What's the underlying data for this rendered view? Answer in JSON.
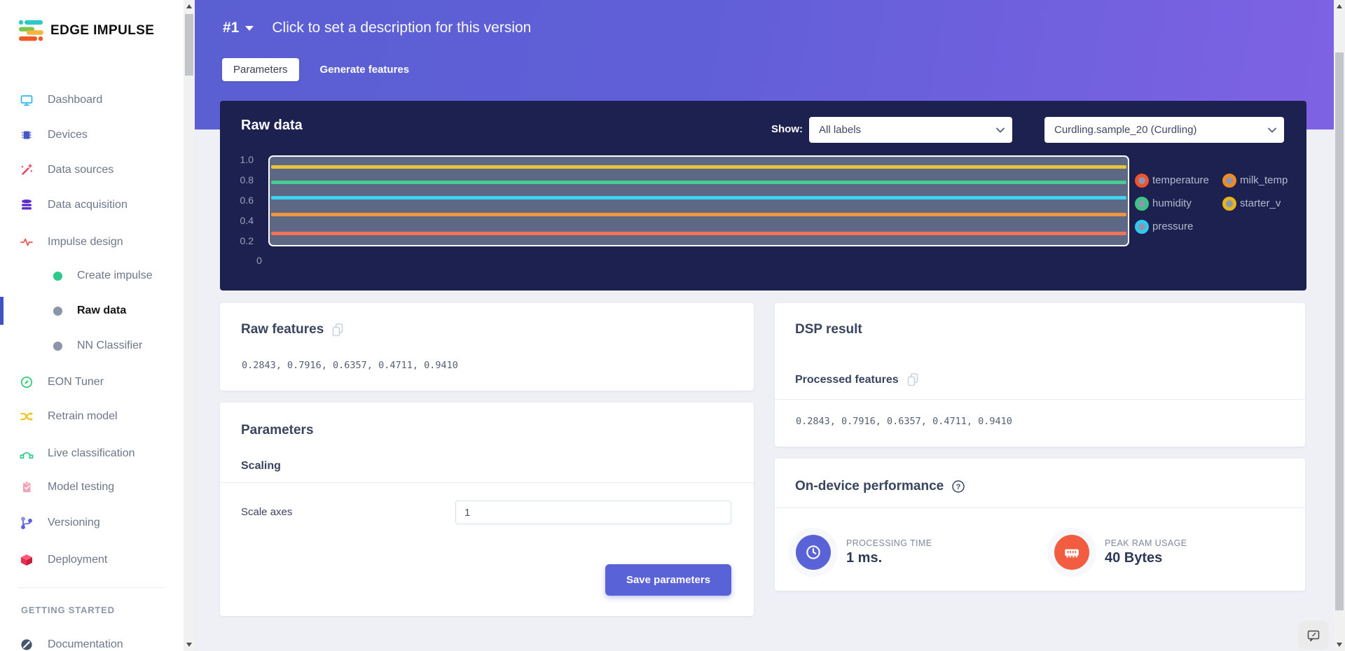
{
  "brand": {
    "name": "EDGE IMPULSE"
  },
  "sidebar": {
    "items": [
      {
        "label": "Dashboard",
        "icon": "monitor-icon"
      },
      {
        "label": "Devices",
        "icon": "chip-icon"
      },
      {
        "label": "Data sources",
        "icon": "wand-icon"
      },
      {
        "label": "Data acquisition",
        "icon": "database-icon"
      },
      {
        "label": "Impulse design",
        "icon": "waveform-icon"
      },
      {
        "label": "Create impulse",
        "icon": "dot-icon",
        "sub": true,
        "dot_color": "#2bc98a",
        "active": false
      },
      {
        "label": "Raw data",
        "icon": "dot-icon",
        "sub": true,
        "dot_color": "#8a95a9",
        "active": true
      },
      {
        "label": "NN Classifier",
        "icon": "dot-icon",
        "sub": true,
        "dot_color": "#8a95a9",
        "active": false
      },
      {
        "label": "EON Tuner",
        "icon": "compass-icon"
      },
      {
        "label": "Retrain model",
        "icon": "shuffle-icon"
      },
      {
        "label": "Live classification",
        "icon": "bezier-icon"
      },
      {
        "label": "Model testing",
        "icon": "clipboard-icon"
      },
      {
        "label": "Versioning",
        "icon": "git-branch-icon"
      },
      {
        "label": "Deployment",
        "icon": "package-icon"
      },
      {
        "label": "Documentation",
        "icon": "rocket-icon"
      }
    ],
    "section_header": "GETTING STARTED"
  },
  "header": {
    "version": "#1",
    "description": "Click to set a description for this version",
    "tabs": [
      {
        "label": "Parameters",
        "active": true
      },
      {
        "label": "Generate features",
        "active": false
      }
    ]
  },
  "raw_data_panel": {
    "title": "Raw data",
    "show_label": "Show:",
    "label_filter_value": "All labels",
    "sample_value": "Curdling.sample_20 (Curdling)"
  },
  "chart_data": {
    "type": "line",
    "title": "Raw data",
    "ylim": [
      0,
      1.05
    ],
    "yticks": [
      "1.0",
      "0.8",
      "0.6",
      "0.4",
      "0.2"
    ],
    "xticks": [
      "0"
    ],
    "grid": false,
    "legend_position": "right",
    "plot_bg": "#5d6884",
    "series": [
      {
        "name": "temperature",
        "value": 0.2843,
        "color": "#f4735a",
        "legend_ring": "#f4512e"
      },
      {
        "name": "humidity",
        "value": 0.7916,
        "color": "#47cd92",
        "legend_ring": "#3cc487"
      },
      {
        "name": "pressure",
        "value": 0.6357,
        "color": "#41d3f2",
        "legend_ring": "#2fc9f2"
      },
      {
        "name": "milk_temp",
        "value": 0.4711,
        "color": "#f0963e",
        "legend_ring": "#ee8b23"
      },
      {
        "name": "starter_v",
        "value": 0.941,
        "color": "#e9c53f",
        "legend_ring": "#e7b41c"
      }
    ],
    "note": "each series is a constant horizontal line across the visible window"
  },
  "raw_features": {
    "title": "Raw features",
    "values": "0.2843, 0.7916, 0.6357, 0.4711, 0.9410"
  },
  "parameters_card": {
    "title": "Parameters",
    "section_title": "Scaling",
    "scale_axes_label": "Scale axes",
    "scale_axes_value": "1",
    "save_button": "Save parameters"
  },
  "dsp_result": {
    "title": "DSP result",
    "processed_label": "Processed features",
    "values": "0.2843, 0.7916, 0.6357, 0.4711, 0.9410"
  },
  "performance": {
    "title": "On-device performance",
    "stats": [
      {
        "label": "PROCESSING TIME",
        "value": "1 ms."
      },
      {
        "label": "PEAK RAM USAGE",
        "value": "40 Bytes"
      }
    ]
  },
  "colors": {
    "accent": "#5a62d8",
    "header_gradient_start": "#5a5fd2",
    "header_gradient_end": "#7e62e4",
    "panel_bg": "#1c2150",
    "stat_clock_bg": "#5a62d8",
    "stat_ram_bg": "#f25c40",
    "page_bg": "#eef0f6"
  }
}
